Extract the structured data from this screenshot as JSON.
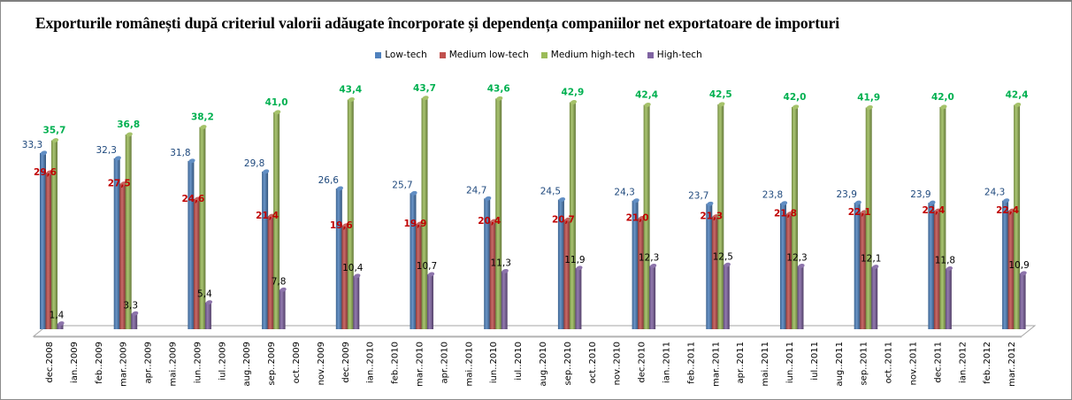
{
  "chart_data": {
    "type": "bar",
    "variant": "3d-cylinder-clustered",
    "title": "Exporturile românești după criteriul valorii adăugate încorporate și dependența companiilor net exportatoare de importuri",
    "xlabel": "",
    "ylabel": "",
    "ylim": [
      0,
      45
    ],
    "grid": false,
    "legend_position": "top",
    "x_axis_labels": [
      "dec.2008",
      "ian..2009",
      "feb..2009",
      "mar..2009",
      "apr..2009",
      "mai..2009",
      "iun..2009",
      "iul..2009",
      "aug..2009",
      "sep..2009",
      "oct..2009",
      "nov..2009",
      "dec.2009",
      "ian..2010",
      "feb..2010",
      "mar..2010",
      "apr..2010",
      "mai..2010",
      "iun..2010",
      "iul..2010",
      "aug..2010",
      "sep..2010",
      "oct..2010",
      "nov..2010",
      "dec.2010",
      "ian..2011",
      "feb..2011",
      "mar..2011",
      "apr..2011",
      "mai..2011",
      "iun..2011",
      "iul..2011",
      "aug..2011",
      "sep..2011",
      "oct..2011",
      "nov..2011",
      "dec.2011",
      "ian..2012",
      "feb..2012",
      "mar..2012"
    ],
    "categories": [
      "dec.2008",
      "mar..2009",
      "iun..2009",
      "sep..2009",
      "dec.2009",
      "mar..2010",
      "iun..2010",
      "sep..2010",
      "dec.2010",
      "mar..2011",
      "iun..2011",
      "sep..2011",
      "dec.2011",
      "mar..2012"
    ],
    "category_axis_index": [
      0,
      3,
      6,
      9,
      12,
      15,
      18,
      21,
      24,
      27,
      30,
      33,
      36,
      39
    ],
    "series": [
      {
        "name": "Low-tech",
        "color": "#4f81bd",
        "label_color": "#1f497d",
        "values": [
          33.3,
          32.3,
          31.8,
          29.8,
          26.6,
          25.7,
          24.7,
          24.5,
          24.3,
          23.7,
          23.8,
          23.9,
          23.9,
          24.3
        ],
        "labels": [
          "33,3",
          "32,3",
          "31,8",
          "29,8",
          "26,6",
          "25,7",
          "24,7",
          "24,5",
          "24,3",
          "23,7",
          "23,8",
          "23,9",
          "23,9",
          "24,3"
        ]
      },
      {
        "name": "Medium low-tech",
        "color": "#c0504d",
        "label_color": "#c00000",
        "values": [
          29.6,
          27.5,
          24.6,
          21.4,
          19.6,
          19.9,
          20.4,
          20.7,
          21.0,
          21.3,
          21.8,
          22.1,
          22.4,
          22.4
        ],
        "labels": [
          "29,6",
          "27,5",
          "24,6",
          "21,4",
          "19,6",
          "19,9",
          "20,4",
          "20,7",
          "21,0",
          "21,3",
          "21,8",
          "22,1",
          "22,4",
          "22,4"
        ]
      },
      {
        "name": "Medium high-tech",
        "color": "#9bbb59",
        "label_color": "#00b050",
        "values": [
          35.7,
          36.8,
          38.2,
          41.0,
          43.4,
          43.7,
          43.6,
          42.9,
          42.4,
          42.5,
          42.0,
          41.9,
          42.0,
          42.4
        ],
        "labels": [
          "35,7",
          "36,8",
          "38,2",
          "41,0",
          "43,4",
          "43,7",
          "43,6",
          "42,9",
          "42,4",
          "42,5",
          "42,0",
          "41,9",
          "42,0",
          "42,4"
        ]
      },
      {
        "name": "High-tech",
        "color": "#8064a2",
        "label_color": "#000000",
        "values": [
          1.4,
          3.3,
          5.4,
          7.8,
          10.4,
          10.7,
          11.3,
          11.9,
          12.3,
          12.5,
          12.3,
          12.1,
          11.8,
          10.9
        ],
        "labels": [
          "1,4",
          "3,3",
          "5,4",
          "7,8",
          "10,4",
          "10,7",
          "11,3",
          "11,9",
          "12,3",
          "12,5",
          "12,3",
          "12,1",
          "11,8",
          "10,9"
        ]
      }
    ]
  }
}
